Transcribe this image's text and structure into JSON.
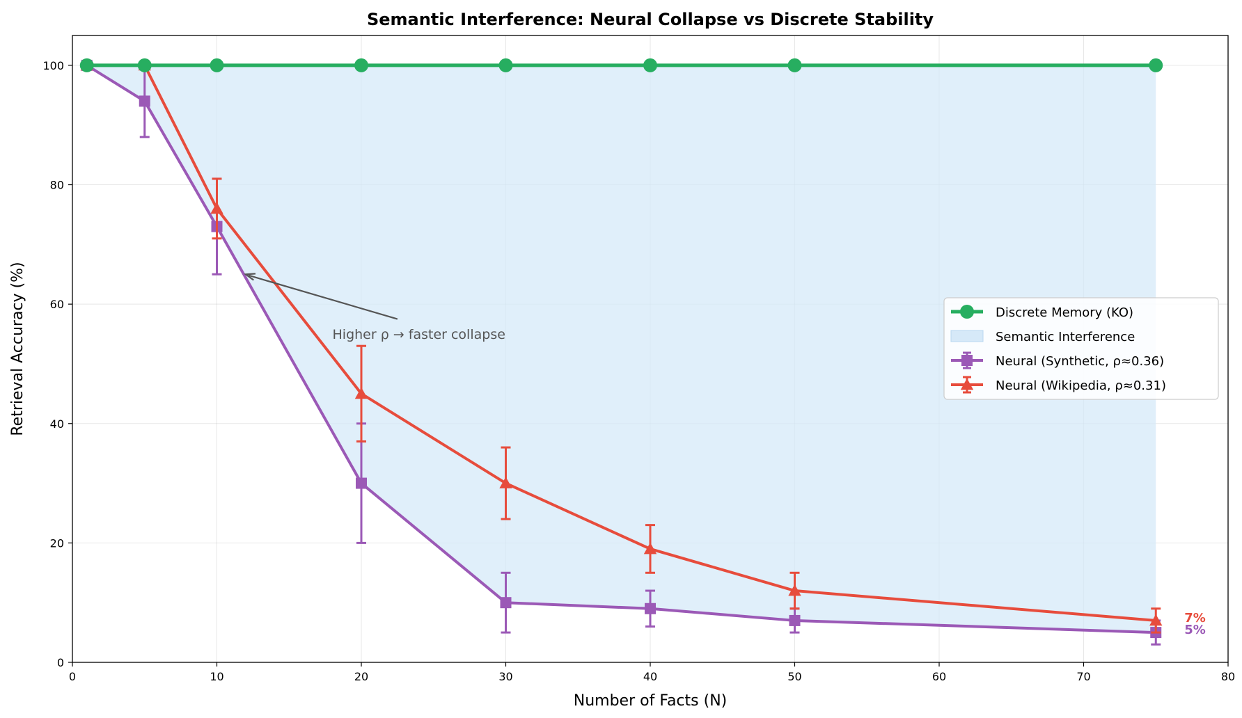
{
  "chart_data": {
    "type": "line",
    "title": "Semantic Interference: Neural Collapse vs Discrete Stability",
    "xlabel": "Number of Facts (N)",
    "ylabel": "Retrieval Accuracy (%)",
    "xlim": [
      0,
      80
    ],
    "ylim": [
      0,
      105
    ],
    "xticks": [
      0,
      10,
      20,
      30,
      40,
      50,
      60,
      70,
      80
    ],
    "yticks": [
      0,
      20,
      40,
      60,
      80,
      100
    ],
    "grid": true,
    "legend_position": "center-right",
    "series": [
      {
        "name": "Discrete Memory (KO)",
        "color": "#27ae60",
        "marker": "circle",
        "x": [
          1,
          5,
          10,
          20,
          30,
          40,
          50,
          75
        ],
        "values": [
          100,
          100,
          100,
          100,
          100,
          100,
          100,
          100
        ]
      },
      {
        "name": "Neural (Synthetic, ρ≈0.36)",
        "color": "#9b59b6",
        "marker": "square",
        "x": [
          1,
          5,
          10,
          20,
          30,
          40,
          50,
          75
        ],
        "values": [
          100,
          94,
          73,
          30,
          10,
          9,
          7,
          5
        ],
        "err": [
          0,
          6,
          8,
          10,
          5,
          3,
          2,
          2
        ]
      },
      {
        "name": "Neural (Wikipedia, ρ≈0.31)",
        "color": "#e74c3c",
        "marker": "triangle",
        "x": [
          1,
          5,
          10,
          20,
          30,
          40,
          50,
          75
        ],
        "values": [
          100,
          100,
          76,
          45,
          30,
          19,
          12,
          7
        ],
        "err": [
          0,
          0,
          5,
          8,
          6,
          4,
          3,
          2
        ]
      }
    ],
    "fill": {
      "name": "Semantic Interference",
      "color": "#d6e9f8",
      "between": [
        "Discrete Memory (KO)",
        "Neural (Synthetic, ρ≈0.36)"
      ]
    },
    "annotation": {
      "text": "Higher ρ → faster collapse",
      "arrow_to": [
        12,
        65
      ],
      "text_at": [
        18,
        55
      ]
    },
    "end_labels": [
      {
        "text": "7%",
        "series": "Neural (Wikipedia, ρ≈0.31)",
        "color": "#e74c3c"
      },
      {
        "text": "5%",
        "series": "Neural (Synthetic, ρ≈0.36)",
        "color": "#9b59b6"
      }
    ]
  }
}
